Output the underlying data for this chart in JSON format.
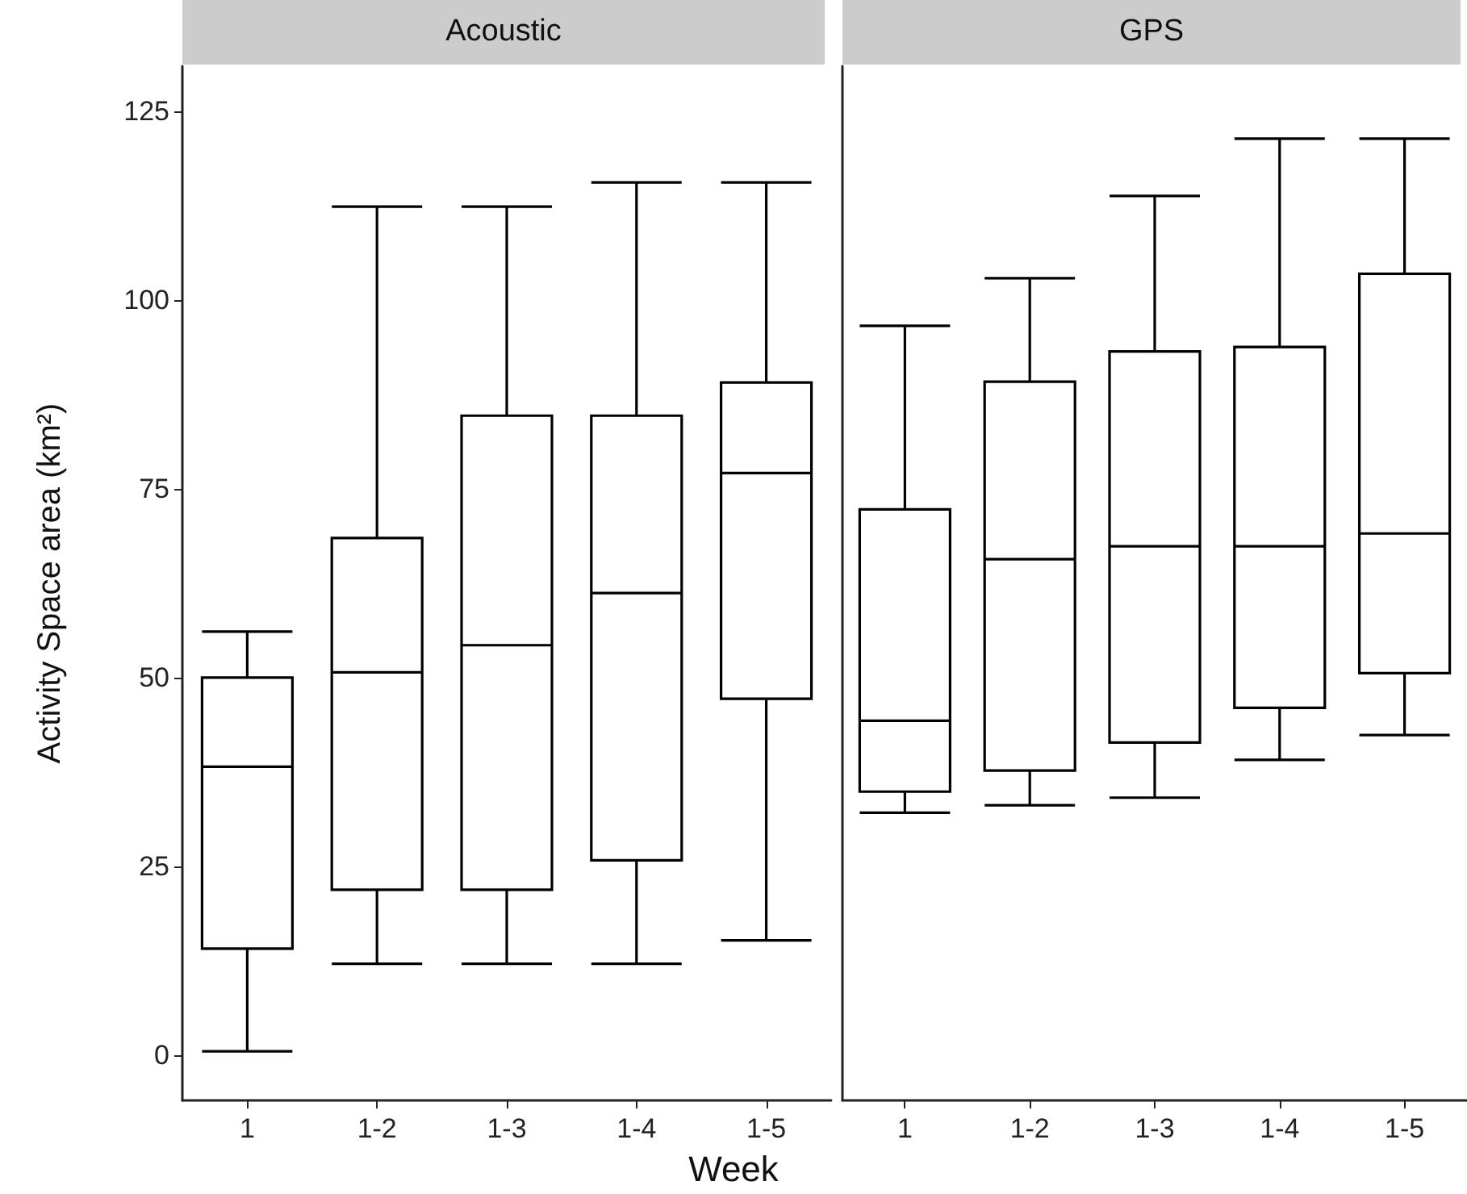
{
  "chart_data": [
    {
      "type": "box",
      "title": "Acoustic",
      "xlabel": "Week",
      "ylabel": "Activity Space area (km²)",
      "categories": [
        "1",
        "1-2",
        "1-3",
        "1-4",
        "1-5"
      ],
      "ylim": [
        -6,
        131
      ],
      "yticks": [
        0,
        25,
        50,
        75,
        100,
        125
      ],
      "grid": false,
      "color": "#000000",
      "boxes": [
        {
          "low": 0.5,
          "q1": 14.1,
          "median": 38.2,
          "q3": 50.0,
          "high": 56.1
        },
        {
          "low": 12.1,
          "q1": 21.9,
          "median": 50.7,
          "q3": 68.5,
          "high": 112.4
        },
        {
          "low": 12.1,
          "q1": 21.9,
          "median": 54.3,
          "q3": 84.7,
          "high": 112.4
        },
        {
          "low": 12.1,
          "q1": 25.8,
          "median": 61.2,
          "q3": 84.7,
          "high": 115.6
        },
        {
          "low": 15.2,
          "q1": 47.2,
          "median": 77.1,
          "q3": 89.1,
          "high": 115.6
        }
      ]
    },
    {
      "type": "box",
      "title": "GPS",
      "categories": [
        "1",
        "1-2",
        "1-3",
        "1-4",
        "1-5"
      ],
      "ylim": [
        -6,
        131
      ],
      "yticks": [
        0,
        25,
        50,
        75,
        100,
        125
      ],
      "grid": false,
      "tick_labels": "x",
      "color": "#000000",
      "boxes": [
        {
          "low": 32.1,
          "q1": 34.9,
          "median": 44.3,
          "q3": 72.3,
          "high": 96.6
        },
        {
          "low": 33.1,
          "q1": 37.7,
          "median": 65.7,
          "q3": 89.2,
          "high": 102.9
        },
        {
          "low": 34.1,
          "q1": 41.4,
          "median": 67.4,
          "q3": 93.2,
          "high": 113.8
        },
        {
          "low": 39.1,
          "q1": 46.0,
          "median": 67.4,
          "q3": 93.8,
          "high": 121.4
        },
        {
          "low": 42.4,
          "q1": 50.6,
          "median": 69.1,
          "q3": 103.5,
          "high": 121.4
        }
      ]
    }
  ]
}
